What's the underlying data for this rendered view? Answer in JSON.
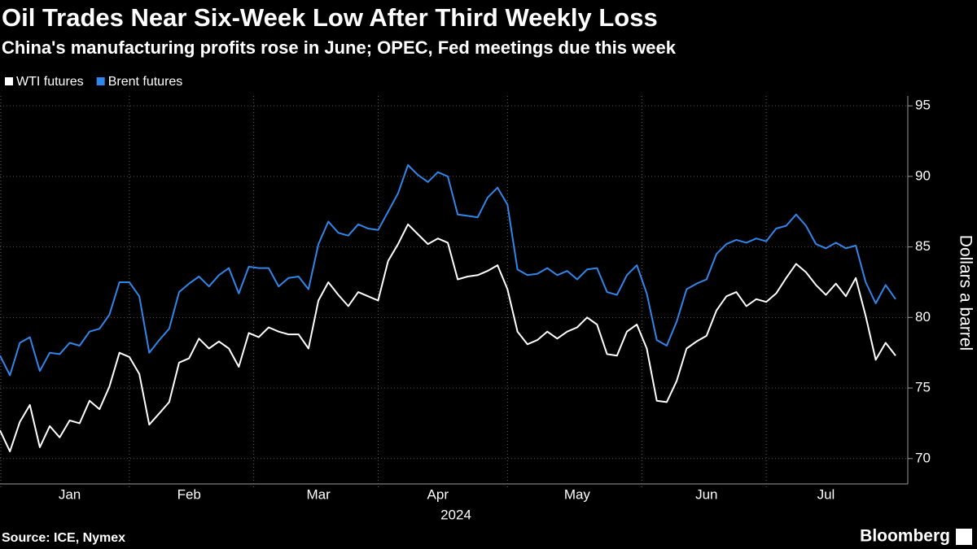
{
  "chart_data": {
    "type": "line",
    "title": "Oil Trades Near Six-Week Low After Third Weekly Loss",
    "subtitle": "China's manufacturing profits rose in June; OPEC, Fed meetings due this week",
    "y_label": "Dollars a barrel",
    "x_label": "2024",
    "source": "Source: ICE, Nymex",
    "brand": "Bloomberg",
    "categories": [
      null,
      null,
      null,
      null,
      null,
      null,
      null,
      "Jan",
      null,
      null,
      null,
      null,
      null,
      null,
      null,
      null,
      null,
      null,
      null,
      "Feb",
      null,
      null,
      null,
      null,
      null,
      null,
      null,
      null,
      null,
      null,
      null,
      null,
      "Mar",
      null,
      null,
      null,
      null,
      null,
      null,
      null,
      null,
      null,
      null,
      null,
      "Apr",
      null,
      null,
      null,
      null,
      null,
      null,
      null,
      null,
      null,
      null,
      null,
      null,
      null,
      "May",
      null,
      null,
      null,
      null,
      null,
      null,
      null,
      null,
      null,
      null,
      null,
      null,
      "Jun",
      null,
      null,
      null,
      null,
      null,
      null,
      null,
      null,
      null,
      null,
      null,
      "Jul",
      null,
      null,
      null,
      null,
      null,
      null,
      null
    ],
    "series": [
      {
        "name": "WTI futures",
        "color": "#ffffff",
        "values": [
          72,
          70.5,
          72.6,
          73.8,
          70.8,
          72.3,
          71.5,
          72.7,
          72.5,
          74.1,
          73.5,
          75.1,
          77.5,
          77.2,
          76.0,
          72.4,
          73.2,
          74,
          76.8,
          77.1,
          78.5,
          77.8,
          78.3,
          77.8,
          76.5,
          78.9,
          78.6,
          79.3,
          79,
          78.8,
          78.8,
          77.8,
          81.2,
          82.5,
          81.6,
          80.8,
          81.8,
          81.5,
          81.2,
          84,
          85.2,
          86.6,
          85.9,
          85.2,
          85.6,
          85.3,
          82.7,
          82.9,
          83,
          83.3,
          83.7,
          82,
          79,
          78.1,
          78.4,
          79,
          78.5,
          79,
          79.3,
          80,
          79.5,
          77.4,
          77.3,
          79,
          79.5,
          77.8,
          74.1,
          74,
          75.5,
          77.8,
          78.3,
          78.7,
          80.5,
          81.5,
          81.8,
          80.8,
          81.3,
          81.1,
          81.7,
          82.8,
          83.8,
          83.2,
          82.3,
          81.6,
          82.4,
          81.5,
          82.8,
          80.1,
          77,
          78.2,
          77.3
        ]
      },
      {
        "name": "Brent futures",
        "color": "#2f86eb",
        "values": [
          77.3,
          75.9,
          78.2,
          78.6,
          76.2,
          77.5,
          77.4,
          78.2,
          78.0,
          79.0,
          79.2,
          80.2,
          82.5,
          82.5,
          81.5,
          77.5,
          78.4,
          79.2,
          81.8,
          82.4,
          82.9,
          82.2,
          83.0,
          83.5,
          81.7,
          83.6,
          83.5,
          83.5,
          82.2,
          82.8,
          82.9,
          82.0,
          85.2,
          86.8,
          86.0,
          85.8,
          86.6,
          86.3,
          86.2,
          87.5,
          88.8,
          90.8,
          90.1,
          89.6,
          90.3,
          90.0,
          87.3,
          87.2,
          87.1,
          88.5,
          89.2,
          88.0,
          83.4,
          83.0,
          83.1,
          83.5,
          83.0,
          83.3,
          82.7,
          83.4,
          83.5,
          81.8,
          81.6,
          83.0,
          83.7,
          81.7,
          78.4,
          78.0,
          79.7,
          82.0,
          82.4,
          82.7,
          84.5,
          85.2,
          85.5,
          85.3,
          85.6,
          85.4,
          86.3,
          86.5,
          87.3,
          86.5,
          85.2,
          84.9,
          85.3,
          84.9,
          85.1,
          82.5,
          81.0,
          82.3,
          81.3
        ]
      }
    ],
    "ylim": [
      68.2,
      95.7
    ],
    "yticks": [
      70,
      75,
      80,
      85,
      90,
      95
    ],
    "grid": true,
    "legend": "top-left"
  }
}
